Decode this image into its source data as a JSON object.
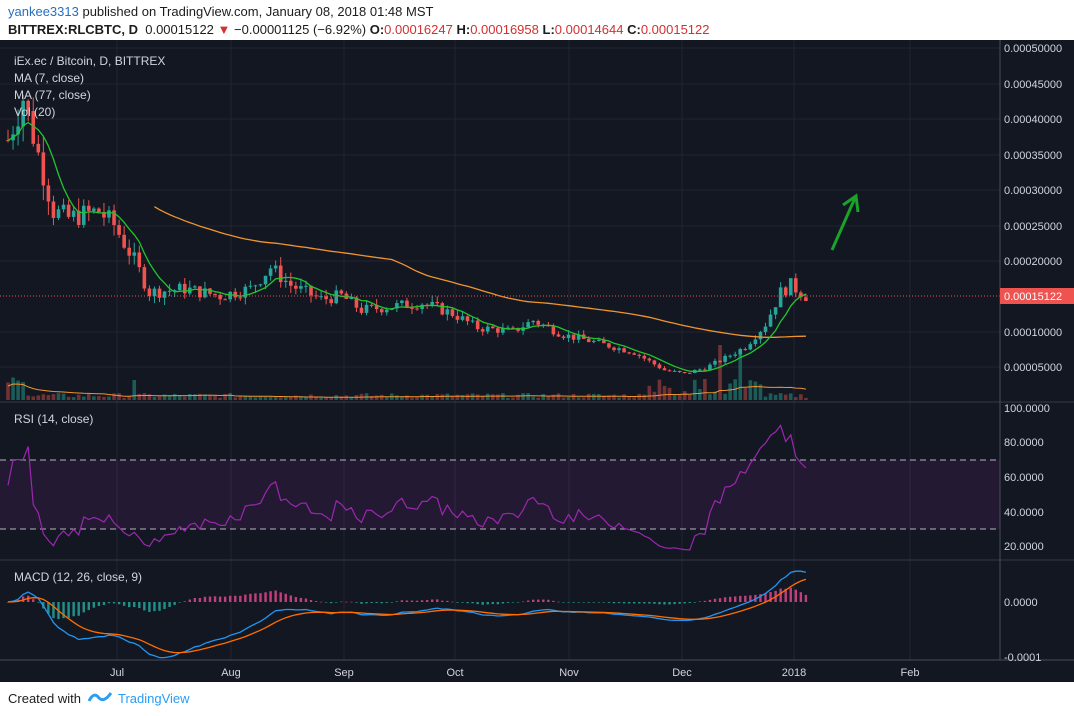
{
  "header": {
    "user": "yankee3313",
    "published_text": "published on TradingView.com, January 08, 2018 01:48 MST",
    "symbol": "BITTREX:RLCBTC, D",
    "last_price": "0.00015122",
    "change": "−0.00001125 (−6.92%)",
    "open_label": "O:",
    "open": "0.00016247",
    "high_label": "H:",
    "high": "0.00016958",
    "low_label": "L:",
    "low": "0.00014644",
    "close_label": "C:",
    "close": "0.00015122"
  },
  "legend": {
    "title": "iEx.ec / Bitcoin, D, BITTREX",
    "ma7": "MA (7, close)",
    "ma77": "MA (77, close)",
    "vol": "Vol (20)",
    "rsi": "RSI (14, close)",
    "macd": "MACD (12, 26, close, 9)"
  },
  "price_axis": [
    "0.00050000",
    "0.00045000",
    "0.00040000",
    "0.00035000",
    "0.00030000",
    "0.00025000",
    "0.00020000",
    "0.00010000",
    "0.00005000"
  ],
  "price_tag": "0.00015122",
  "rsi_axis": [
    "100.0000",
    "80.0000",
    "60.0000",
    "40.0000",
    "20.0000"
  ],
  "macd_axis": [
    "0.0000",
    "-0.0001"
  ],
  "time_axis": [
    "Jul",
    "Aug",
    "Sep",
    "Oct",
    "Nov",
    "Dec",
    "2018",
    "Feb"
  ],
  "footer": {
    "created_with": "Created with",
    "brand": "TradingView"
  },
  "colors": {
    "background": "#131722",
    "up": "#26a69a",
    "down": "#ef5350",
    "ma7": "#22c52e",
    "ma77": "#f0952d",
    "rsi": "#9c27b0",
    "macd": "#2196f3",
    "signal": "#ff6d00",
    "arrow": "#19a32a"
  }
}
